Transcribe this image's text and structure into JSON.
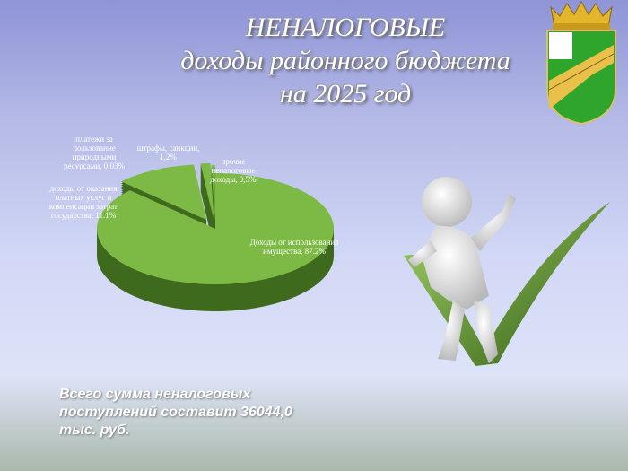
{
  "title": {
    "line1": "НЕНАЛОГОВЫЕ",
    "line2": "доходы районного бюджета",
    "line3": "на 2025 год"
  },
  "chart_data": {
    "type": "pie",
    "style": "3d-exploded",
    "categories": [
      "Доходы от использования имущества",
      "доходы от оказания платных услуг и компенсации затрат государства",
      "платежи за пользование природными ресурсами",
      "штрафы, санкции",
      "прочие неналоговые доходы"
    ],
    "values": [
      87.2,
      11.1,
      0.03,
      1.2,
      0.5
    ],
    "unit": "%",
    "labels": [
      "Доходы от использования имущества, 87.2%",
      "доходы от оказания платных услуг и компенсации затрат государства, 11.1%",
      "платежи за пользование природными ресурсами, 0,03%",
      "штрафы, санкции, 1,2%",
      "прочие неналоговые доходы, 0,5%"
    ],
    "colors": {
      "top": "#7dba45",
      "side": "#3f6a1e"
    }
  },
  "total": "Всего сумма неналоговых поступлений составит 36044,0 тыс. руб."
}
